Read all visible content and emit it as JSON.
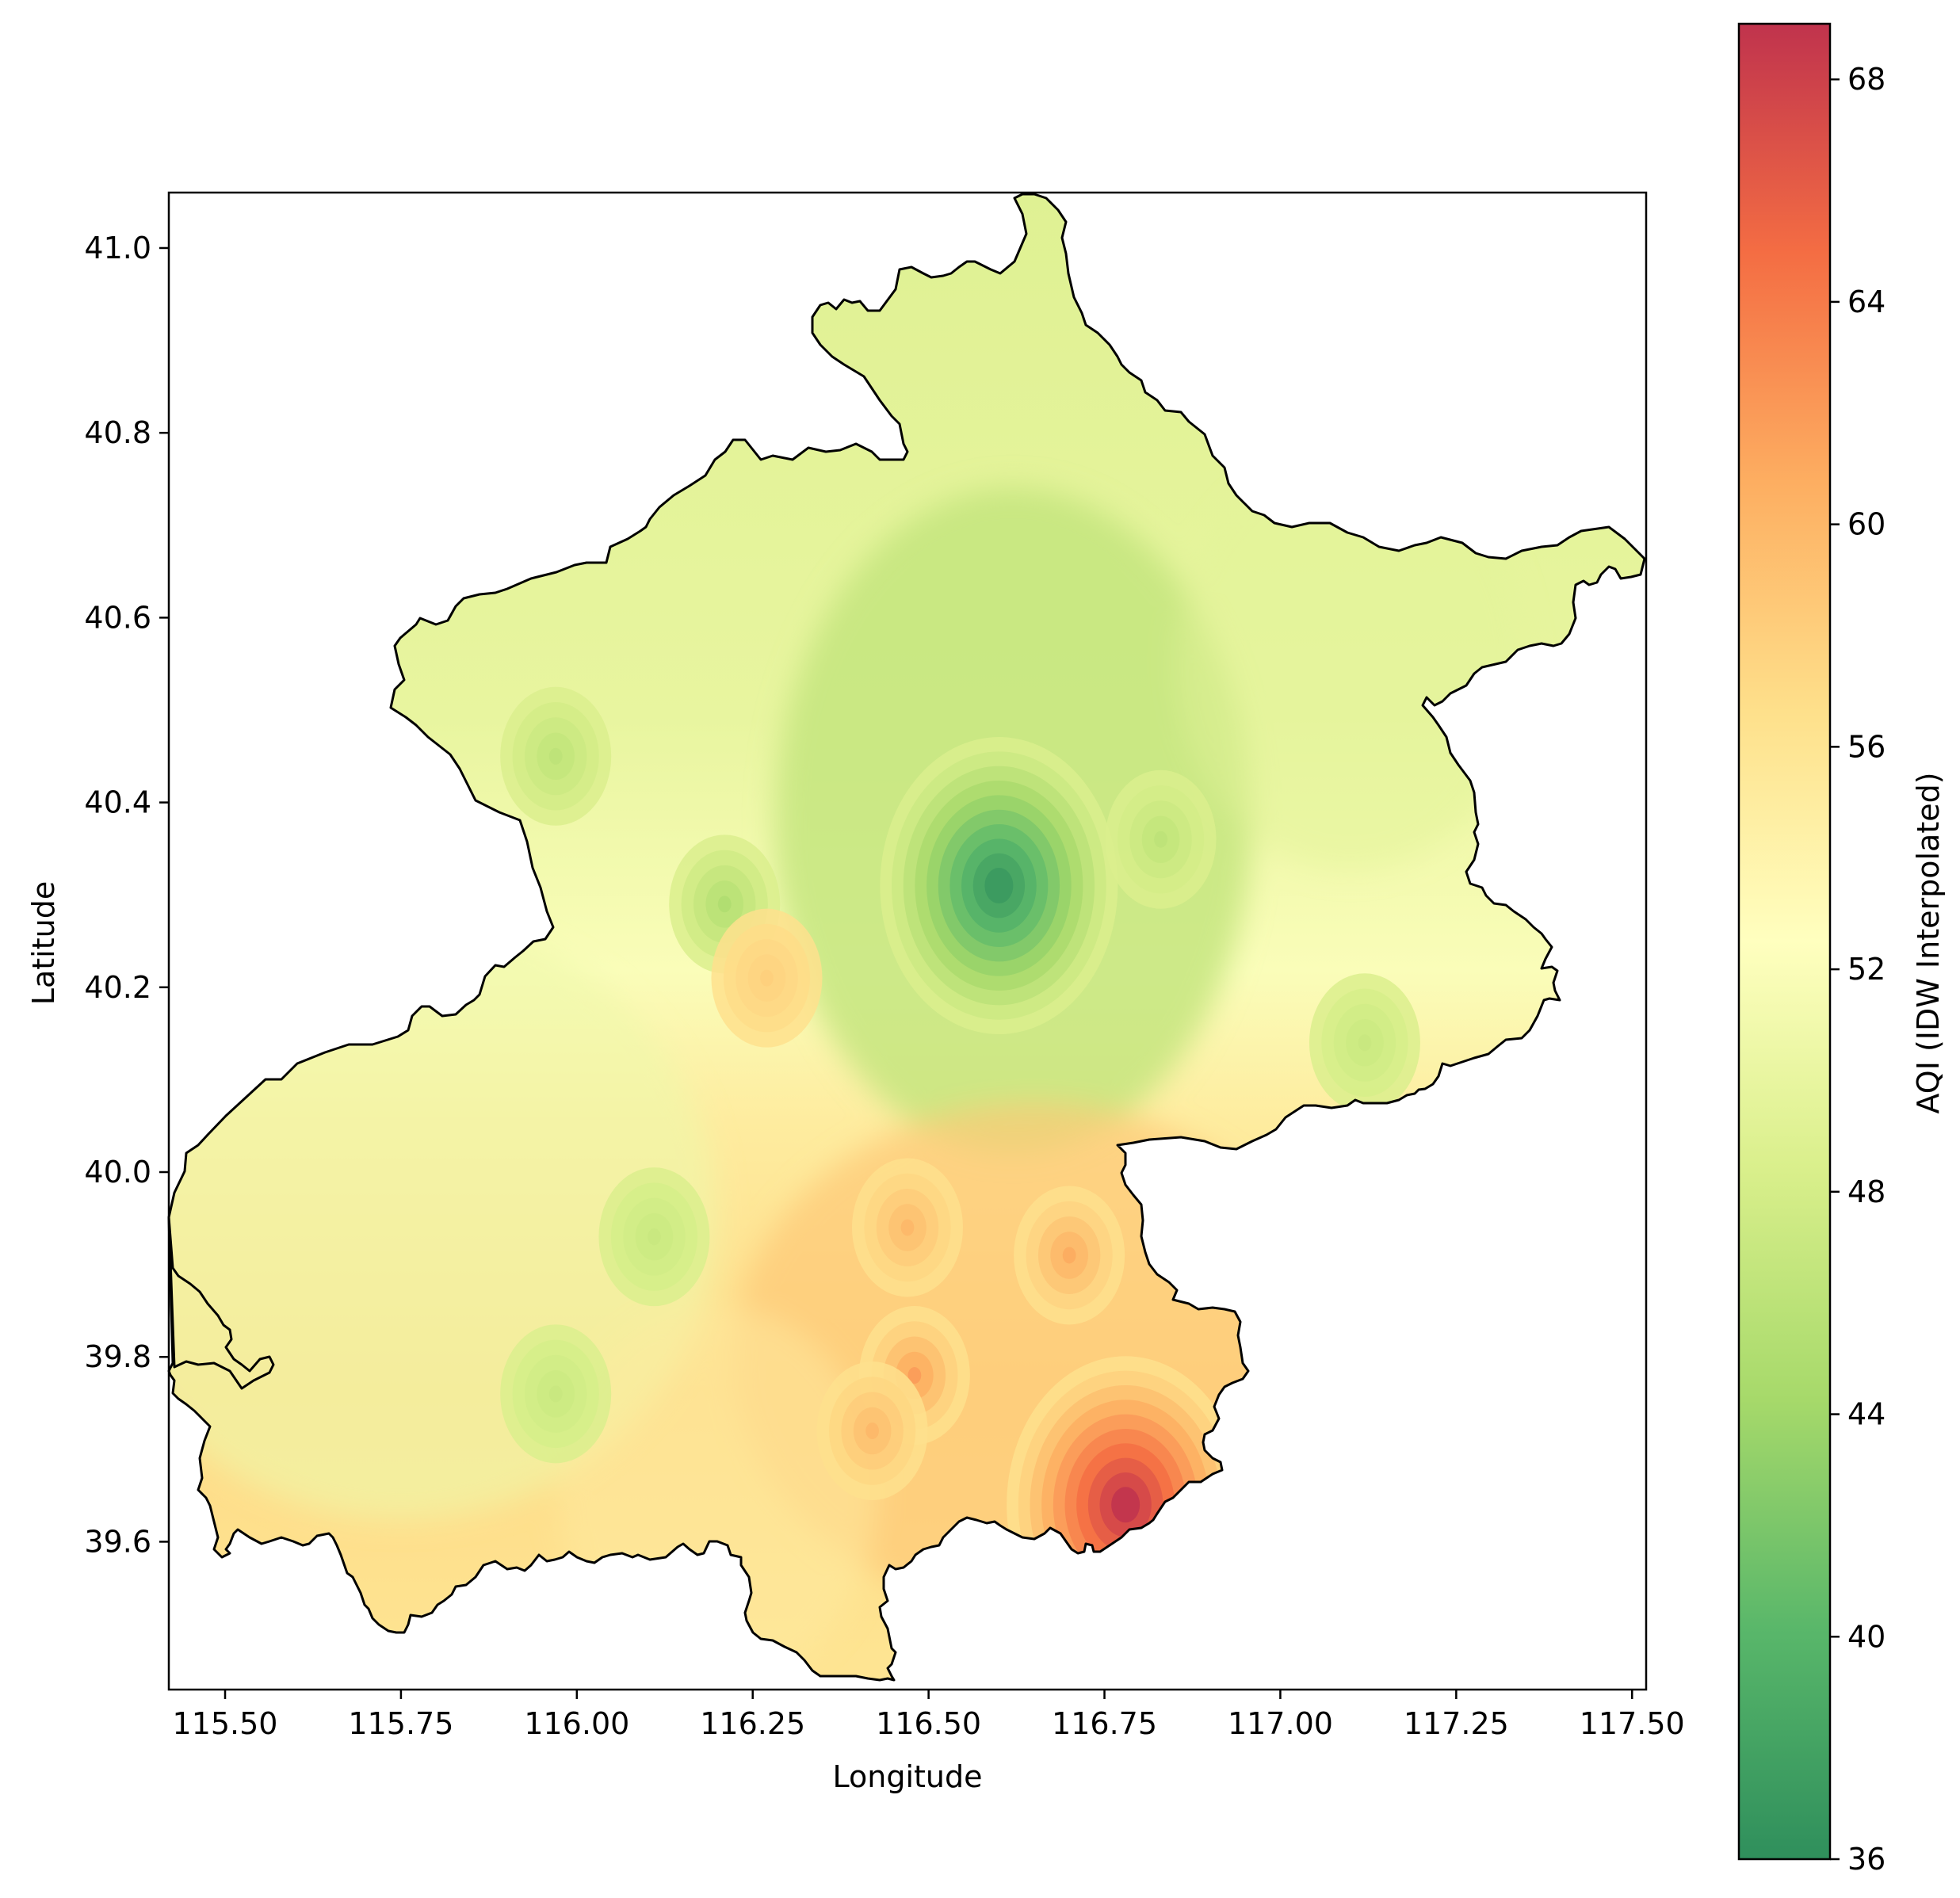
{
  "chart_data": {
    "type": "heatmap",
    "title": "",
    "xlabel": "Longitude",
    "ylabel": "Latitude",
    "xlim": [
      115.42,
      117.52
    ],
    "ylim": [
      39.44,
      41.06
    ],
    "xticks": [
      "115.50",
      "115.75",
      "116.00",
      "116.25",
      "116.50",
      "116.75",
      "117.00",
      "117.25",
      "117.50"
    ],
    "yticks": [
      "39.6",
      "39.8",
      "40.0",
      "40.2",
      "40.4",
      "40.6",
      "40.8",
      "41.0"
    ],
    "colorbar": {
      "label": "AQI (IDW Interpolated)",
      "range": [
        36,
        69
      ],
      "ticks": [
        "36",
        "40",
        "44",
        "48",
        "52",
        "56",
        "60",
        "64",
        "68"
      ],
      "colormap": "RdYlGn_r",
      "stops": [
        "#2f8f5c",
        "#59b76a",
        "#a6d96a",
        "#d9ef8b",
        "#ffffbf",
        "#fee08b",
        "#fdae61",
        "#f46d43",
        "#c0334d"
      ]
    },
    "hotspots": [
      {
        "lon": 116.6,
        "lat": 40.31,
        "aqi": 37,
        "kind": "low"
      },
      {
        "lon": 115.97,
        "lat": 40.45,
        "aqi": 46,
        "kind": "low"
      },
      {
        "lon": 116.21,
        "lat": 40.29,
        "aqi": 45,
        "kind": "low"
      },
      {
        "lon": 116.83,
        "lat": 40.36,
        "aqi": 46,
        "kind": "low"
      },
      {
        "lon": 117.12,
        "lat": 40.14,
        "aqi": 47,
        "kind": "low"
      },
      {
        "lon": 116.11,
        "lat": 39.93,
        "aqi": 47,
        "kind": "low"
      },
      {
        "lon": 115.97,
        "lat": 39.76,
        "aqi": 47,
        "kind": "low"
      },
      {
        "lon": 116.27,
        "lat": 40.21,
        "aqi": 58,
        "kind": "high"
      },
      {
        "lon": 116.7,
        "lat": 39.91,
        "aqi": 61,
        "kind": "high"
      },
      {
        "lon": 116.47,
        "lat": 39.94,
        "aqi": 60,
        "kind": "high"
      },
      {
        "lon": 116.48,
        "lat": 39.78,
        "aqi": 62,
        "kind": "high"
      },
      {
        "lon": 116.42,
        "lat": 39.72,
        "aqi": 60,
        "kind": "high"
      },
      {
        "lon": 116.78,
        "lat": 39.64,
        "aqi": 69,
        "kind": "high"
      }
    ]
  }
}
